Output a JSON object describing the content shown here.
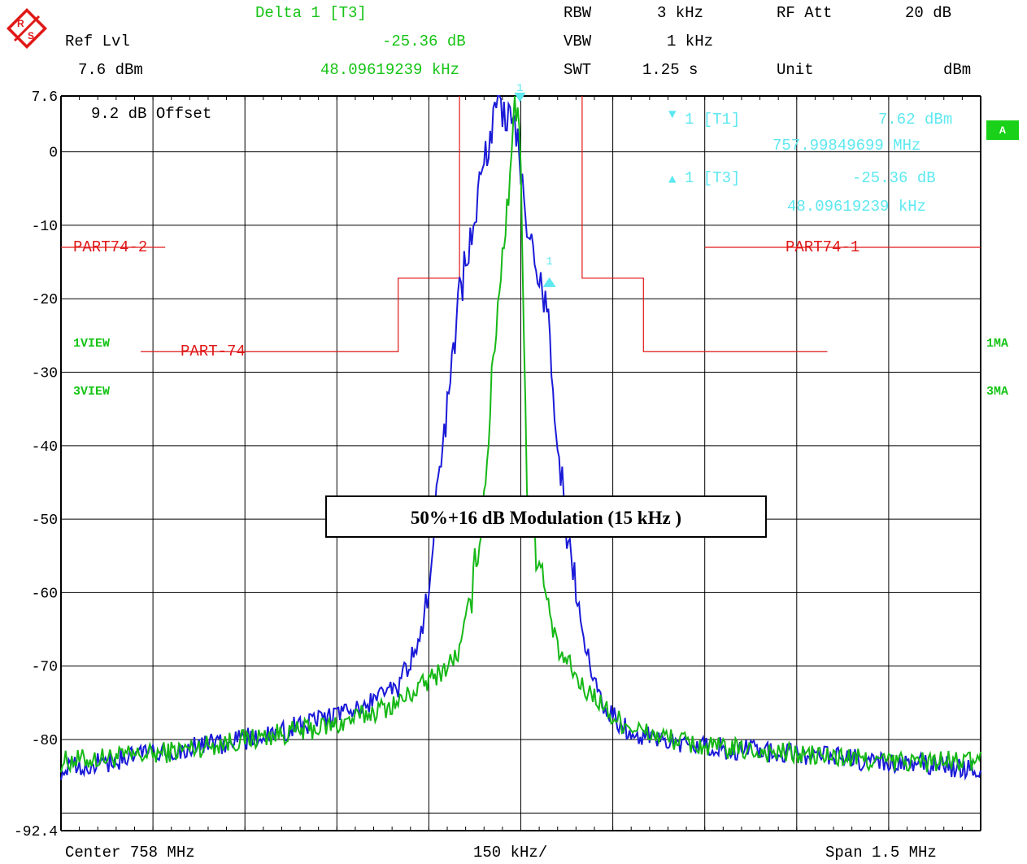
{
  "header": {
    "delta": "Delta 1 [T3]",
    "ref_lvl_label": "Ref Lvl",
    "ref_lvl_value": "7.6 dBm",
    "delta_value": "-25.36 dB",
    "delta_freq": "48.09619239 kHz",
    "rbw_label": "RBW",
    "rbw_value": "3 kHz",
    "vbw_label": "VBW",
    "vbw_value": "1 kHz",
    "swt_label": "SWT",
    "swt_value": "1.25 s",
    "rfatt_label": "RF Att",
    "rfatt_value": "20 dB",
    "unit_label": "Unit",
    "unit_value": "dBm"
  },
  "overlay": {
    "offset": "9.2 dB Offset",
    "m1_label": "1 [T1]",
    "m1_value": "7.62 dBm",
    "m1_freq": "757.99849699 MHz",
    "m3_label": "1 [T3]",
    "m3_value": "-25.36 dB",
    "m3_freq": "48.09619239 kHz",
    "trace1": "1VIEW",
    "trace3": "3VIEW",
    "right1": "1MA",
    "right3": "3MA",
    "badge": "A",
    "marker_num": "1",
    "annotation": "50%+16 dB Modulation (15 kHz )"
  },
  "footer": {
    "center": "Center 758 MHz",
    "div": "150 kHz/",
    "span": "Span 1.5 MHz"
  },
  "colors": {
    "trace_blue": "#1a1ad8",
    "trace_green": "#16b816",
    "limit_red": "#e01818",
    "marker_cyan": "#5ee8f0"
  },
  "chart_data": {
    "type": "line",
    "title": "",
    "xlabel": "",
    "ylabel": "",
    "x_unit": "MHz",
    "center_mhz": 758,
    "span_mhz": 1.5,
    "xlim": [
      757.25,
      758.75
    ],
    "ylim": [
      -92.4,
      7.6
    ],
    "y_ticks": [
      "7.6",
      "0",
      "-10",
      "-20",
      "-30",
      "-40",
      "-50",
      "-60",
      "-70",
      "-80",
      "-92.4"
    ],
    "grid": true,
    "limit_lines": [
      {
        "name": "PART74-2",
        "points": [
          [
            757.25,
            -13
          ],
          [
            757.42,
            -13
          ]
        ]
      },
      {
        "name": "PART74-1",
        "points": [
          [
            758.3,
            -13
          ],
          [
            758.75,
            -13
          ]
        ]
      },
      {
        "name": "PART-74",
        "points": [
          [
            757.38,
            -27.2
          ],
          [
            757.8,
            -27.2
          ],
          [
            757.8,
            -17.2
          ],
          [
            757.9,
            -17.2
          ],
          [
            757.9,
            7.6
          ]
        ]
      },
      {
        "name": "",
        "points": [
          [
            758.1,
            7.6
          ],
          [
            758.1,
            -17.2
          ],
          [
            758.2,
            -17.2
          ],
          [
            758.2,
            -27.2
          ],
          [
            758.5,
            -27.2
          ]
        ]
      }
    ],
    "series": [
      {
        "name": "1VIEW",
        "x": [
          757.25,
          757.4,
          757.55,
          757.7,
          757.8,
          757.85,
          757.88,
          757.9,
          757.92,
          757.94,
          757.96,
          757.98,
          757.99,
          758.0,
          758.01,
          758.02,
          758.04,
          758.06,
          758.08,
          758.1,
          758.12,
          758.15,
          758.2,
          758.3,
          758.45,
          758.6,
          758.75
        ],
        "y": [
          -83,
          -82,
          -80,
          -78,
          -75,
          -72,
          -70,
          -68,
          -60,
          -47,
          -23,
          -5,
          7.6,
          0,
          -47,
          -52,
          -60,
          -68,
          -70,
          -73,
          -74,
          -77,
          -79,
          -81,
          -82,
          -83,
          -83
        ]
      },
      {
        "name": "3VIEW",
        "x": [
          757.25,
          757.4,
          757.55,
          757.7,
          757.8,
          757.84,
          757.86,
          757.88,
          757.9,
          757.92,
          757.94,
          757.96,
          757.98,
          757.99,
          758.0,
          758.01,
          758.02,
          758.04,
          758.05,
          758.06,
          758.08,
          758.1,
          758.12,
          758.14,
          758.18,
          758.3,
          758.45,
          758.6,
          758.75
        ],
        "y": [
          -84,
          -82,
          -80,
          -77,
          -73,
          -65,
          -50,
          -35,
          -20,
          -10,
          -2,
          7,
          4,
          5,
          -2,
          -10,
          -15,
          -20,
          -28,
          -40,
          -55,
          -65,
          -72,
          -76,
          -79,
          -81,
          -82,
          -83,
          -84
        ]
      }
    ],
    "markers": [
      {
        "name": "1 [T1]",
        "x": 757.99849699,
        "y": 7.62
      },
      {
        "name": "1 [T3]",
        "x": 758.04659468,
        "y": -17.74
      }
    ]
  }
}
